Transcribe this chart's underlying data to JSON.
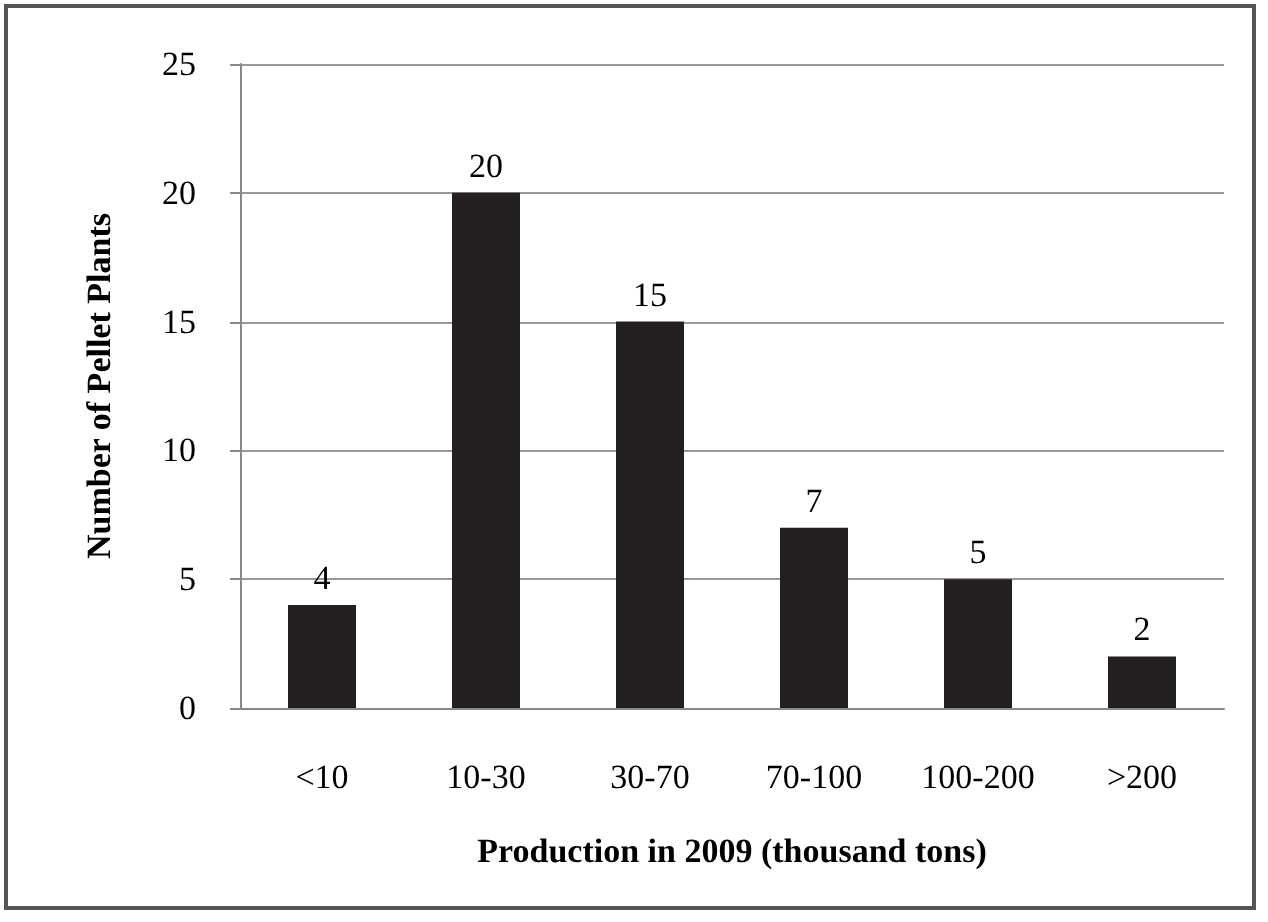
{
  "chart_data": {
    "type": "bar",
    "xlabel": "Production in 2009 (thousand tons)",
    "ylabel": "Number of Pellet Plants",
    "categories": [
      "<10",
      "10-30",
      "30-70",
      "70-100",
      "100-200",
      ">200"
    ],
    "values": [
      4,
      20,
      15,
      7,
      5,
      2
    ],
    "color": "#231f20",
    "ylim": [
      0,
      25
    ],
    "yticks": [
      0,
      5,
      10,
      15,
      20,
      25
    ],
    "grid": "y",
    "data_labels": true
  }
}
